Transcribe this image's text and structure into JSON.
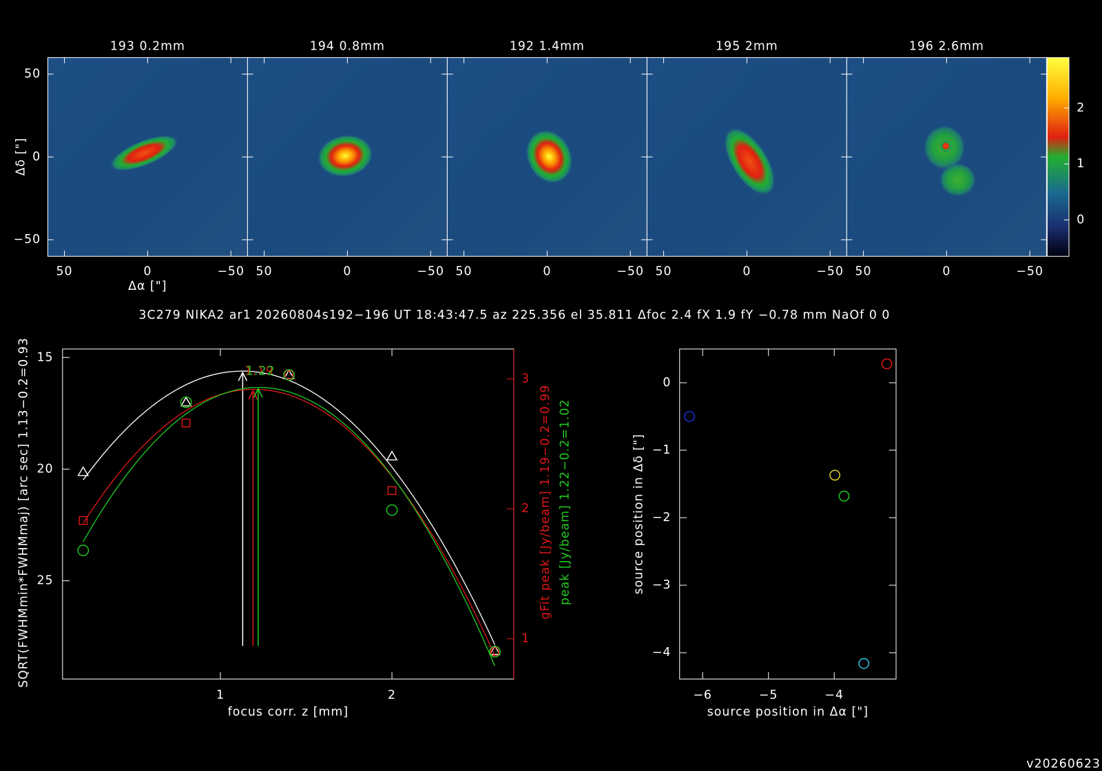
{
  "caption": "3C279 NIKA2 ar1 20260804s192−196 UT 18:43:47.5 az 225.356 el 35.811 Δfoc 2.4 fX 1.9 fY −0.78 mm NaOf 0 0",
  "version": "v20260623",
  "chart_data": [
    {
      "type": "image",
      "titles": [
        "193 0.2mm",
        "194 0.8mm",
        "192 1.4mm",
        "195 2mm",
        "196 2.6mm"
      ],
      "xlabel": "Δα [\"]",
      "ylabel": "Δδ [\"]",
      "xlim": [
        60,
        -60
      ],
      "ylim": [
        -60,
        60
      ],
      "xticks": [
        50,
        0,
        {
          "value": -50,
          "label": "−50"
        }
      ],
      "yticks": [
        {
          "value": -50,
          "label": "−50"
        },
        0,
        50
      ],
      "clim": [
        -0.65,
        2.9
      ],
      "cticks": [
        0,
        1,
        2
      ]
    },
    {
      "type": "line",
      "xlabel": "focus corr. z [mm]",
      "ylabel": "SQRT(FWHMmin*FWHMmaj) [arc sec] 1.13−0.2=0.93",
      "y2labels": [
        "gFit peak [Jy/beam] 1.19−0.2=0.99",
        "peak [Jy/beam] 1.22−0.2=1.02"
      ],
      "x": [
        0.2,
        0.8,
        1.4,
        2.0,
        2.6
      ],
      "xlim": [
        0.08,
        2.71
      ],
      "xticks": [
        1,
        2
      ],
      "ylim": [
        29.4,
        14.62
      ],
      "yticks": [
        15,
        20,
        25
      ],
      "y2lim": [
        0.69,
        3.23
      ],
      "y2ticks": [
        1,
        2,
        3
      ],
      "y2color": "#e01818",
      "series": [
        {
          "color": "#ffffff",
          "marker": "triangle",
          "values": [
            20.13,
            17.01,
            15.79,
            19.43,
            28.14
          ],
          "best": 1.13
        },
        {
          "color": "#e01818",
          "marker": "square",
          "axis": "y2",
          "values": [
            1.91,
            2.66,
            3.03,
            2.14,
            0.9
          ],
          "best": 1.19
        },
        {
          "color": "#22cc22",
          "marker": "circle",
          "axis": "y2",
          "values": [
            1.68,
            2.82,
            3.03,
            1.99,
            0.9
          ],
          "best": 1.22
        }
      ]
    },
    {
      "type": "scatter",
      "xlabel": "source position in Δα [\"]",
      "ylabel": "source position in Δδ [\"]",
      "xlim": [
        -6.35,
        -3.06
      ],
      "ylim": [
        -4.39,
        0.5
      ],
      "xticks": [
        {
          "value": -6,
          "label": "−6"
        },
        {
          "value": -5,
          "label": "−5"
        },
        {
          "value": -4,
          "label": "−4"
        }
      ],
      "yticks": [
        0,
        {
          "value": -1,
          "label": "−1"
        },
        {
          "value": -2,
          "label": "−2"
        },
        {
          "value": -3,
          "label": "−3"
        },
        {
          "value": -4,
          "label": "−4"
        }
      ],
      "x": [
        -3.2,
        -6.2,
        -3.99,
        -3.85,
        -3.55
      ],
      "y": [
        0.28,
        -0.5,
        -1.37,
        -1.68,
        -4.16
      ],
      "colors": [
        "#e01818",
        "#1830d0",
        "#e0d020",
        "#22cc22",
        "#30c0e0"
      ]
    }
  ]
}
